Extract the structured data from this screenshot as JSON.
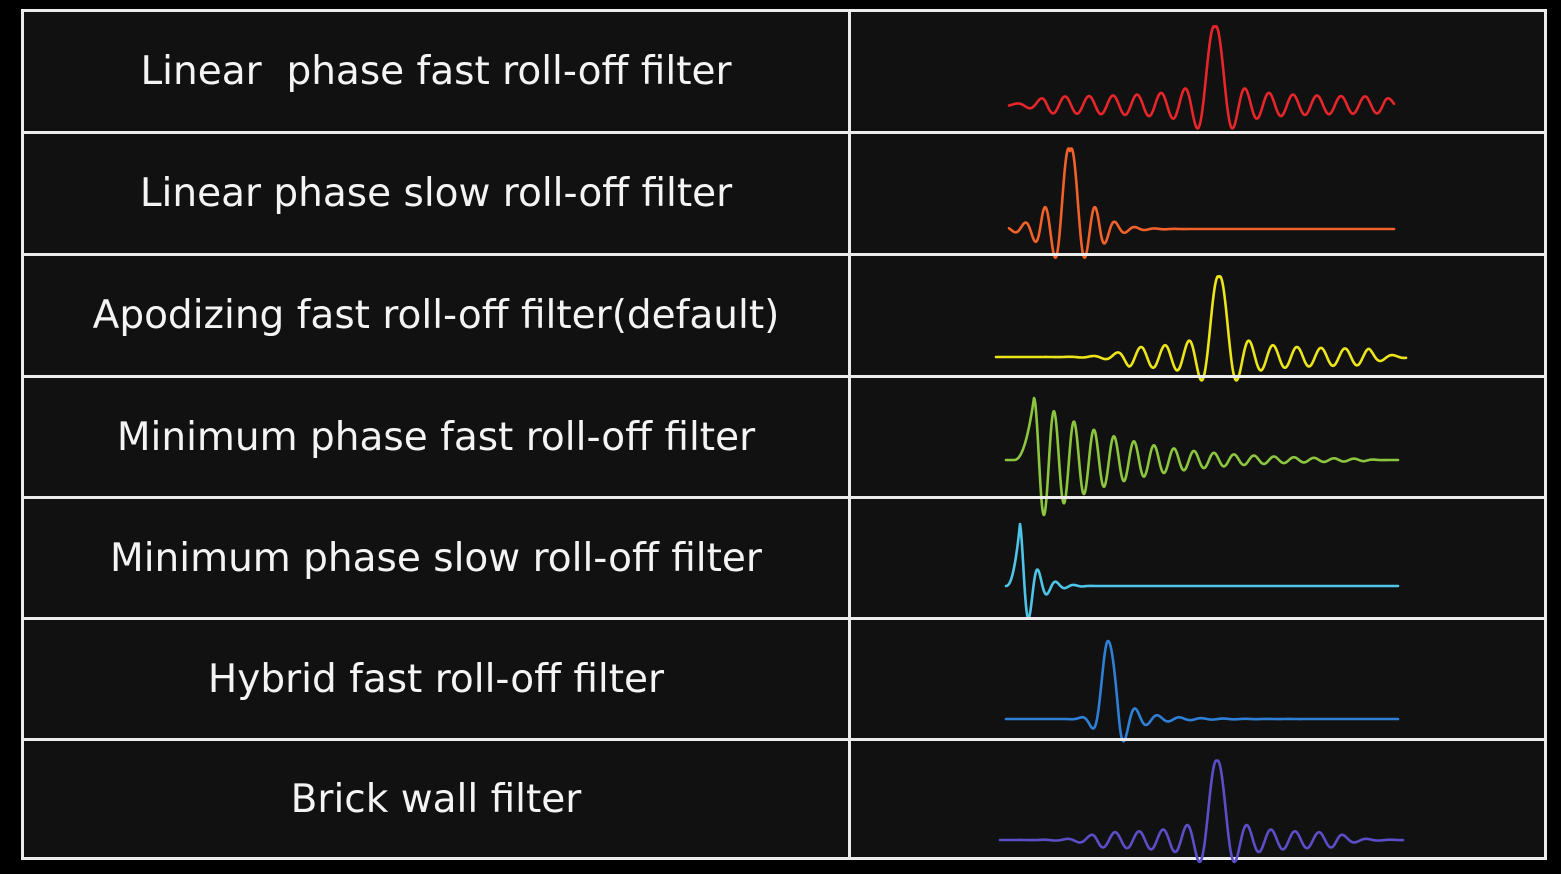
{
  "filters": [
    {
      "name": "Linear  phase fast roll-off filter",
      "color": "#e8262a",
      "waveform": "linear-fast"
    },
    {
      "name": "Linear phase slow roll-off filter",
      "color": "#f0622a",
      "waveform": "linear-slow"
    },
    {
      "name": "Apodizing fast roll-off filter(default)",
      "color": "#ece51a",
      "waveform": "apodizing-fast"
    },
    {
      "name": "Minimum phase fast roll-off filter",
      "color": "#8cc63f",
      "waveform": "minimum-fast"
    },
    {
      "name": "Minimum phase slow roll-off filter",
      "color": "#4ec5e8",
      "waveform": "minimum-slow"
    },
    {
      "name": "Hybrid fast roll-off filter",
      "color": "#2f7fd6",
      "waveform": "hybrid-fast"
    },
    {
      "name": "Brick wall filter",
      "color": "#5b4ec8",
      "waveform": "brick-wall"
    }
  ]
}
